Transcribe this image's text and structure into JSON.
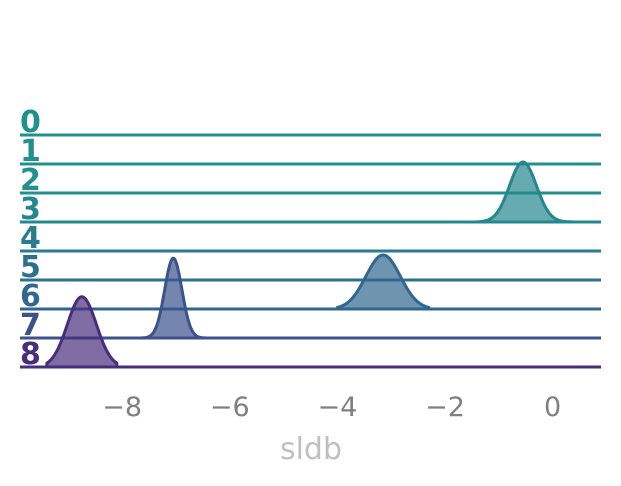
{
  "chart_data": {
    "type": "area",
    "subtype": "ridgeline",
    "title": "",
    "xlabel": "sldb",
    "ylabel": "",
    "xlim": [
      -9.9,
      0.9
    ],
    "xticks": [
      -8,
      -6,
      -4,
      -2,
      0
    ],
    "xtick_labels": [
      "−8",
      "−6",
      "−4",
      "−2",
      "0"
    ],
    "grid": false,
    "legend": "none",
    "rows": [
      {
        "label": "0",
        "color": "#21918c",
        "peak": null,
        "sd": null,
        "xmin": null,
        "xmax": null,
        "height": 0
      },
      {
        "label": "1",
        "color": "#21918c",
        "peak": null,
        "sd": null,
        "xmin": null,
        "xmax": null,
        "height": 0
      },
      {
        "label": "2",
        "color": "#22908c",
        "peak": null,
        "sd": null,
        "xmin": null,
        "xmax": null,
        "height": 0
      },
      {
        "label": "3",
        "color": "#24878e",
        "peak": -0.55,
        "sd": 0.25,
        "xmin": -1.4,
        "xmax": 0.45,
        "height": 1.0
      },
      {
        "label": "4",
        "color": "#287d8e",
        "peak": null,
        "sd": null,
        "xmin": null,
        "xmax": null,
        "height": 0
      },
      {
        "label": "5",
        "color": "#2c728e",
        "peak": null,
        "sd": null,
        "xmin": null,
        "xmax": null,
        "height": 0
      },
      {
        "label": "6",
        "color": "#31668e",
        "peak": -3.15,
        "sd": 0.32,
        "xmin": -4.0,
        "xmax": -2.3,
        "height": 0.9
      },
      {
        "label": "7",
        "color": "#3b528b",
        "peak": -7.05,
        "sd": 0.16,
        "xmin": -7.65,
        "xmax": -6.4,
        "height": 1.33
      },
      {
        "label": "8",
        "color": "#472d7b",
        "peak": -8.75,
        "sd": 0.27,
        "xmin": -9.4,
        "xmax": -8.1,
        "height": 1.17
      }
    ]
  }
}
